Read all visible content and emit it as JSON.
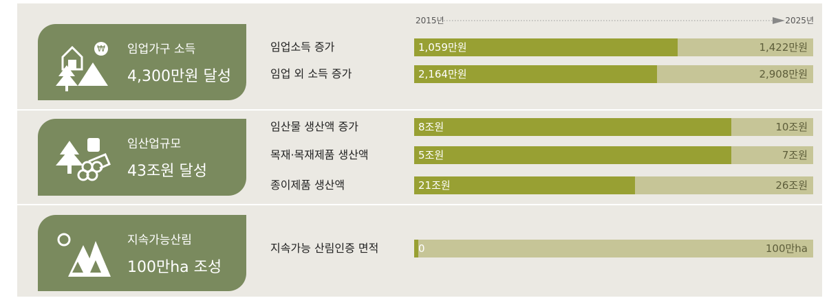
{
  "header": {
    "start": "2015년",
    "end": "2025년"
  },
  "sections": [
    {
      "title": "임업가구 소득",
      "headline": "4,300만원 달성",
      "rows": [
        {
          "label": "임업소득 증가",
          "start": "1,059만원",
          "end": "1,422만원"
        },
        {
          "label": "임업 외 소득 증가",
          "start": "2,164만원",
          "end": "2,908만원"
        }
      ]
    },
    {
      "title": "임산업규모",
      "headline": "43조원 달성",
      "rows": [
        {
          "label": "임산물 생산액 증가",
          "start": "8조원",
          "end": "10조원"
        },
        {
          "label": "목재·목재제품 생산액",
          "start": "5조원",
          "end": "7조원"
        },
        {
          "label": "종이제품 생산액",
          "start": "21조원",
          "end": "26조원"
        }
      ]
    },
    {
      "title": "지속가능산림",
      "headline": "100만ha 조성",
      "rows": [
        {
          "label": "지속가능 산림인증 면적",
          "start": "0",
          "end": "100만ha"
        }
      ]
    }
  ]
}
